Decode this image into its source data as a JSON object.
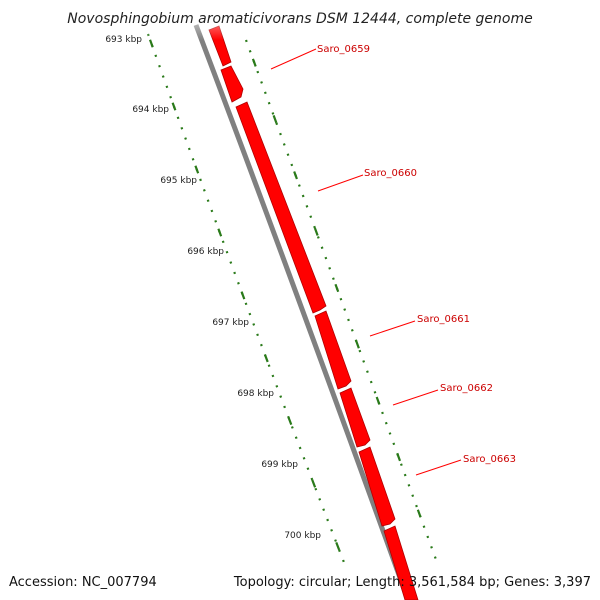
{
  "title": "Novosphingobium aromaticivorans DSM 12444, complete genome",
  "ticks": [
    "693 kbp",
    "694 kbp",
    "695 kbp",
    "696 kbp",
    "697 kbp",
    "698 kbp",
    "699 kbp",
    "700 kbp"
  ],
  "genes": [
    "Saro_0659",
    "Saro_0660",
    "Saro_0661",
    "Saro_0662",
    "Saro_0663"
  ],
  "footer": {
    "accession": "Accession: NC_007794",
    "stats": "Topology: circular; Length: 3,561,584 bp; Genes: 3,397"
  },
  "colors": {
    "gene": "#ff0000",
    "gene_label": "#cc0000",
    "backbone": "#808080",
    "gc_skew": "#2a7a1a"
  }
}
